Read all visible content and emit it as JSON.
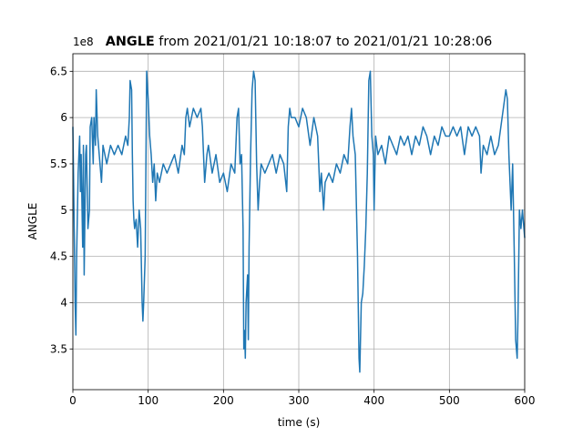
{
  "chart_data": {
    "type": "line",
    "title_bold": "ANGLE",
    "title": "from 2021/01/21 10:18:07 to 2021/01/21 10:28:06",
    "x_label": "time (s)",
    "y_label": "ANGLE",
    "y_offset_label": "1e8",
    "color": "#1f77b4",
    "grid": true,
    "xlim": [
      0,
      600
    ],
    "xticks": [
      0,
      100,
      200,
      300,
      400,
      500,
      600
    ],
    "ylim": [
      3.06,
      6.69
    ],
    "yticks": [
      3.5,
      4.0,
      4.5,
      5.0,
      5.5,
      6.0,
      6.5
    ],
    "x": [
      0,
      1,
      3,
      4,
      5,
      7,
      9,
      10,
      11,
      13,
      14,
      15,
      17,
      18,
      20,
      22,
      23,
      25,
      27,
      28,
      30,
      31,
      33,
      35,
      38,
      40,
      45,
      50,
      55,
      60,
      65,
      70,
      73,
      75,
      76,
      78,
      79,
      80,
      81,
      82,
      84,
      86,
      88,
      90,
      92,
      93,
      94,
      96,
      98,
      100,
      102,
      104,
      106,
      108,
      110,
      112,
      115,
      120,
      125,
      130,
      135,
      140,
      145,
      148,
      150,
      152,
      155,
      160,
      165,
      170,
      172,
      175,
      178,
      180,
      185,
      190,
      195,
      200,
      205,
      210,
      215,
      218,
      220,
      222,
      224,
      226,
      227,
      228,
      229,
      230,
      232,
      233,
      234,
      236,
      238,
      240,
      242,
      244,
      246,
      248,
      250,
      255,
      260,
      265,
      270,
      275,
      280,
      284,
      286,
      288,
      290,
      295,
      300,
      305,
      310,
      315,
      320,
      325,
      328,
      330,
      333,
      335,
      340,
      345,
      350,
      355,
      360,
      365,
      368,
      370,
      372,
      375,
      378,
      380,
      381,
      383,
      385,
      387,
      389,
      391,
      393,
      395,
      397,
      399,
      400,
      402,
      405,
      410,
      415,
      420,
      425,
      430,
      435,
      440,
      445,
      450,
      455,
      460,
      465,
      470,
      475,
      480,
      485,
      490,
      495,
      500,
      505,
      510,
      515,
      520,
      525,
      530,
      535,
      540,
      542,
      545,
      550,
      555,
      560,
      565,
      575,
      577,
      579,
      582,
      584,
      586,
      588,
      590,
      591,
      593,
      595,
      597,
      600
    ],
    "values": [
      5.9,
      5.3,
      4.0,
      3.65,
      4.5,
      5.4,
      5.8,
      5.2,
      5.6,
      4.6,
      5.7,
      4.3,
      5.6,
      5.7,
      4.8,
      5.0,
      5.9,
      6.0,
      5.5,
      6.0,
      5.7,
      6.3,
      5.8,
      5.6,
      5.3,
      5.7,
      5.5,
      5.7,
      5.6,
      5.7,
      5.6,
      5.8,
      5.7,
      6.0,
      6.4,
      6.3,
      5.6,
      5.1,
      4.9,
      4.8,
      4.9,
      4.6,
      5.0,
      4.8,
      4.0,
      3.8,
      4.0,
      4.5,
      6.5,
      6.2,
      5.8,
      5.6,
      5.3,
      5.5,
      5.1,
      5.4,
      5.3,
      5.5,
      5.4,
      5.5,
      5.6,
      5.4,
      5.7,
      5.6,
      6.0,
      6.1,
      5.9,
      6.1,
      6.0,
      6.1,
      5.9,
      5.3,
      5.6,
      5.7,
      5.4,
      5.6,
      5.3,
      5.4,
      5.2,
      5.5,
      5.4,
      6.0,
      6.1,
      5.5,
      5.6,
      4.8,
      3.5,
      3.7,
      3.4,
      4.0,
      4.3,
      3.6,
      4.6,
      5.6,
      6.3,
      6.5,
      6.4,
      5.5,
      5.0,
      5.3,
      5.5,
      5.4,
      5.5,
      5.6,
      5.4,
      5.6,
      5.5,
      5.2,
      5.9,
      6.1,
      6.0,
      6.0,
      5.9,
      6.1,
      6.0,
      5.7,
      6.0,
      5.8,
      5.2,
      5.4,
      5.0,
      5.3,
      5.4,
      5.3,
      5.5,
      5.4,
      5.6,
      5.5,
      5.9,
      6.1,
      5.8,
      5.6,
      4.5,
      3.4,
      3.25,
      4.0,
      4.1,
      4.4,
      4.8,
      5.4,
      6.4,
      6.5,
      5.8,
      5.6,
      5.0,
      5.8,
      5.6,
      5.7,
      5.5,
      5.8,
      5.7,
      5.6,
      5.8,
      5.7,
      5.8,
      5.6,
      5.8,
      5.7,
      5.9,
      5.8,
      5.6,
      5.8,
      5.7,
      5.9,
      5.8,
      5.8,
      5.9,
      5.8,
      5.9,
      5.6,
      5.9,
      5.8,
      5.9,
      5.8,
      5.4,
      5.7,
      5.6,
      5.8,
      5.6,
      5.7,
      6.3,
      6.2,
      5.6,
      5.0,
      5.5,
      4.6,
      3.6,
      3.4,
      3.8,
      5.0,
      4.8,
      5.0,
      4.7
    ]
  }
}
